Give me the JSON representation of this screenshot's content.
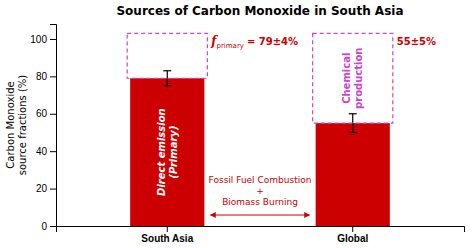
{
  "chart_data": {
    "type": "bar",
    "title": "Sources of Carbon Monoxide in South Asia",
    "categories": [
      "South Asia",
      "Global"
    ],
    "values": [
      79,
      55
    ],
    "errors": [
      4,
      5
    ],
    "color": "#cc0000",
    "ylabel": [
      "Carbon Monoxide",
      "source fractions (%)"
    ],
    "ylim": [
      0,
      108
    ],
    "yticks": [
      0,
      20,
      40,
      60,
      80,
      100
    ],
    "bar_labels": [
      [
        "Direct emission",
        "(Primary)"
      ],
      null
    ],
    "dashed_box": {
      "top": 103,
      "color": "#cc44cc",
      "labels": [
        null,
        [
          "Chemical",
          "production"
        ]
      ]
    },
    "bar_annotations": [
      [
        "f",
        "primary",
        "= 79±4%"
      ],
      [
        "55±5%"
      ]
    ],
    "middle_text": [
      "Fossil Fuel Combustion",
      "+",
      "Biomass Burning"
    ]
  }
}
